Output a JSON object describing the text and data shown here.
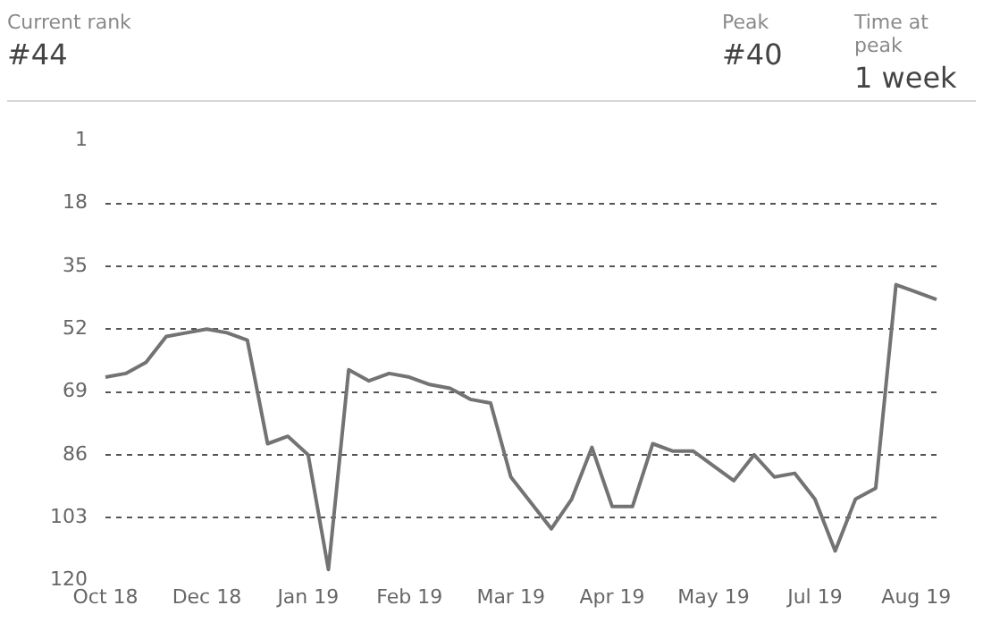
{
  "chart_data": {
    "type": "line",
    "annotations": [
      "Current rank",
      "#44",
      "Peak",
      "#40",
      "Time at peak",
      "1 week"
    ],
    "categories": [
      "Oct 18",
      null,
      null,
      null,
      null,
      "Dec 18",
      null,
      null,
      null,
      null,
      "Jan 19",
      null,
      null,
      null,
      null,
      "Feb 19",
      null,
      null,
      null,
      null,
      "Mar 19",
      null,
      null,
      null,
      null,
      "Apr 19",
      null,
      null,
      null,
      null,
      "May 19",
      null,
      null,
      null,
      null,
      "Jul 19",
      null,
      null,
      null,
      null,
      "Aug 19",
      null
    ],
    "series": [
      {
        "color": "#737373",
        "values": [
          65,
          64,
          61,
          54,
          53,
          52,
          53,
          55,
          83,
          81,
          86,
          117,
          63,
          66,
          64,
          65,
          67,
          68,
          71,
          72,
          92,
          99,
          106,
          98,
          84,
          100,
          100,
          83,
          85,
          85,
          89,
          93,
          86,
          92,
          91,
          98,
          112,
          98,
          95,
          40,
          null,
          44
        ]
      }
    ],
    "ylim": [
      120,
      1
    ],
    "yticks": [
      1,
      18,
      35,
      52,
      69,
      86,
      103,
      120
    ],
    "grid": "y",
    "line_style": "solid",
    "marker": "none",
    "legend": false
  }
}
